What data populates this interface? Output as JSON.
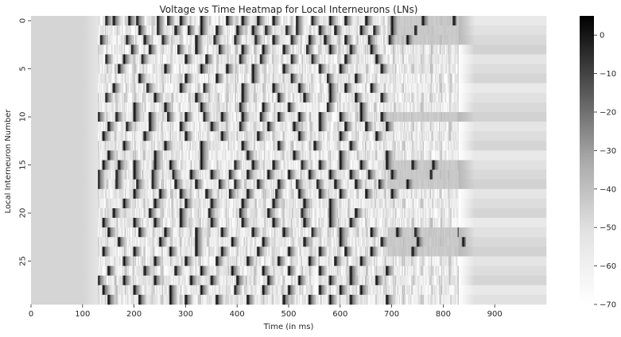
{
  "chart_data": {
    "type": "heatmap",
    "title": "Voltage vs Time Heatmap for Local Interneurons (LNs)",
    "xlabel": "Time (in ms)",
    "ylabel": "Local Interneuron Number",
    "x_range": [
      0,
      1000
    ],
    "y_range": [
      0,
      30
    ],
    "x_ticks": [
      0,
      100,
      200,
      300,
      400,
      500,
      600,
      700,
      800,
      900
    ],
    "y_ticks": [
      0,
      5,
      10,
      15,
      20,
      25
    ],
    "colorbar": {
      "min": -70,
      "max": 5,
      "ticks": [
        0,
        -10,
        -20,
        -30,
        -40,
        -50,
        -60,
        -70
      ],
      "colormap": "Greys",
      "low_color": "#ffffff",
      "high_color": "#000000"
    },
    "baseline_voltage": -60,
    "rest_voltage": -70,
    "late_voltage_range": [
      -58,
      -65
    ],
    "stimulus_window_ms": [
      130,
      830
    ],
    "spike_times": [
      [
        145,
        160,
        190,
        205,
        245,
        265,
        290,
        330,
        380,
        410,
        440,
        470,
        515,
        545,
        580,
        610,
        650,
        700,
        760
      ],
      [
        210,
        245,
        280,
        305,
        330,
        360,
        400,
        430,
        455,
        495,
        515,
        560,
        590,
        640,
        665,
        700
      ],
      [
        135,
        185,
        220,
        255,
        320,
        355,
        395,
        435,
        470,
        505,
        540,
        570,
        610,
        655,
        695,
        730
      ],
      [
        195,
        230,
        285,
        320,
        365,
        410,
        450,
        490,
        535,
        580,
        620,
        660
      ],
      [
        145,
        180,
        215,
        300,
        340,
        405,
        445,
        505,
        545,
        610,
        670
      ],
      [
        170,
        260,
        330,
        380,
        430,
        490,
        560,
        600,
        680
      ],
      [
        210,
        300,
        360,
        430,
        505,
        575,
        630
      ],
      [
        160,
        225,
        290,
        335,
        410,
        470,
        520,
        580,
        610,
        660
      ],
      [
        145,
        240,
        320,
        410,
        480,
        530,
        580,
        630,
        680
      ],
      [
        200,
        260,
        330,
        405,
        450,
        500,
        575,
        640
      ],
      [
        130,
        165,
        200,
        230,
        265,
        300,
        335,
        370,
        410,
        445,
        480,
        520,
        560,
        600,
        640,
        680
      ],
      [
        150,
        185,
        230,
        290,
        350,
        405,
        460,
        510,
        560,
        610,
        650,
        690
      ],
      [
        140,
        220,
        300,
        370,
        440,
        520,
        600,
        670
      ],
      [
        180,
        260,
        330,
        410,
        480,
        550,
        620
      ],
      [
        150,
        240,
        330,
        420,
        510,
        600,
        690
      ],
      [
        140,
        170,
        200,
        240,
        270,
        330,
        395,
        430,
        470,
        525,
        560,
        600,
        640,
        690,
        740,
        780
      ],
      [
        130,
        165,
        200,
        235,
        275,
        310,
        350,
        385,
        420,
        460,
        500,
        540,
        580,
        620,
        655,
        700
      ],
      [
        130,
        165,
        205,
        235,
        280,
        320,
        365,
        395,
        440,
        480,
        515,
        555,
        590,
        630,
        675,
        730
      ],
      [
        200,
        250,
        290,
        340,
        385,
        420,
        475,
        520,
        560,
        600,
        650,
        700
      ],
      [
        180,
        240,
        300,
        350,
        410,
        470,
        530,
        580
      ],
      [
        160,
        230,
        290,
        345,
        405,
        460,
        525,
        580,
        630
      ],
      [
        140,
        200,
        240,
        290,
        350,
        410,
        470,
        530,
        580,
        620
      ],
      [
        150,
        210,
        260,
        320,
        370,
        430,
        490,
        545,
        600,
        660,
        710,
        745,
        830
      ],
      [
        170,
        250,
        320,
        390,
        450,
        530,
        600,
        680,
        750
      ],
      [
        140,
        200,
        270,
        320,
        370,
        440,
        500,
        560,
        610,
        660,
        740
      ],
      [
        180,
        240,
        300,
        360,
        420,
        480,
        540,
        590,
        640
      ],
      [
        150,
        220,
        280,
        330,
        390,
        450,
        500,
        560,
        620,
        690
      ],
      [
        130,
        180,
        240,
        310,
        350,
        400,
        460,
        520,
        580,
        620,
        670
      ],
      [
        140,
        200,
        270,
        330,
        395,
        450,
        500,
        560,
        600,
        640
      ],
      [
        150,
        210,
        270,
        300,
        360,
        420,
        490,
        540,
        580,
        620,
        690
      ]
    ],
    "late_spikes": [
      {
        "row": 0,
        "time": 820
      },
      {
        "row": 1,
        "time": 745
      },
      {
        "row": 16,
        "time": 775
      },
      {
        "row": 22,
        "time": 745
      },
      {
        "row": 23,
        "time": 838
      }
    ],
    "elevated_rows_after_stimulus": [
      0,
      1,
      2,
      10,
      15,
      16,
      17,
      22,
      23,
      24
    ]
  }
}
